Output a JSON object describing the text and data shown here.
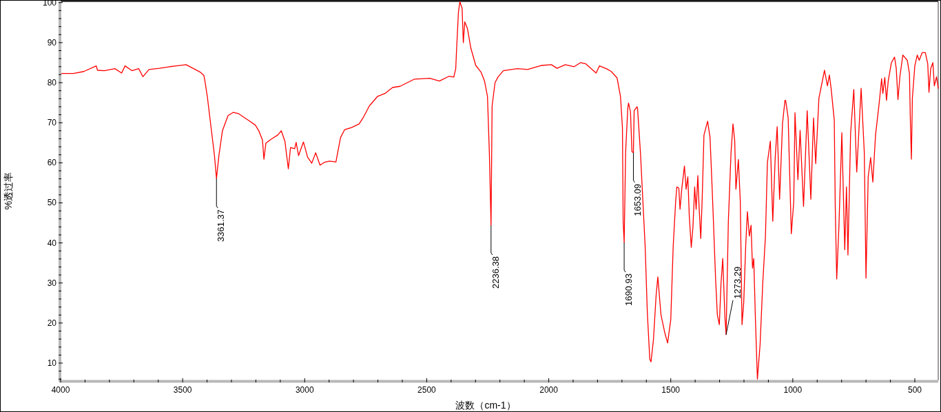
{
  "chart_data": {
    "type": "line",
    "xlabel": "波数（cm-1）",
    "ylabel": "%透过率",
    "xlim": [
      4000,
      404
    ],
    "ylim": [
      5.7,
      100.3
    ],
    "xticks": [
      4000,
      {
        "value": 3900,
        "label": null
      },
      {
        "value": 3800,
        "label": null
      },
      {
        "value": 3700,
        "label": null
      },
      {
        "value": 3600,
        "label": null
      },
      3500,
      {
        "value": 3400,
        "label": null
      },
      {
        "value": 3300,
        "label": null
      },
      {
        "value": 3200,
        "label": null
      },
      {
        "value": 3100,
        "label": null
      },
      3000,
      {
        "value": 2900,
        "label": null
      },
      {
        "value": 2800,
        "label": null
      },
      {
        "value": 2700,
        "label": null
      },
      {
        "value": 2600,
        "label": null
      },
      2500,
      {
        "value": 2400,
        "label": null
      },
      {
        "value": 2300,
        "label": null
      },
      {
        "value": 2200,
        "label": null
      },
      {
        "value": 2100,
        "label": null
      },
      2000,
      {
        "value": 1900,
        "label": null
      },
      {
        "value": 1800,
        "label": null
      },
      {
        "value": 1700,
        "label": null
      },
      {
        "value": 1600,
        "label": null
      },
      1500,
      {
        "value": 1400,
        "label": null
      },
      {
        "value": 1300,
        "label": null
      },
      {
        "value": 1200,
        "label": null
      },
      {
        "value": 1100,
        "label": null
      },
      1000,
      {
        "value": 900,
        "label": null
      },
      {
        "value": 800,
        "label": null
      },
      {
        "value": 700,
        "label": null
      },
      {
        "value": 600,
        "label": null
      },
      500
    ],
    "yticks": [
      {
        "value": 6,
        "label": null
      },
      {
        "value": 8,
        "label": null
      },
      10,
      {
        "value": 12,
        "label": null
      },
      {
        "value": 14,
        "label": null
      },
      {
        "value": 16,
        "label": null
      },
      {
        "value": 18,
        "label": null
      },
      20,
      {
        "value": 22,
        "label": null
      },
      {
        "value": 24,
        "label": null
      },
      {
        "value": 26,
        "label": null
      },
      {
        "value": 28,
        "label": null
      },
      30,
      {
        "value": 32,
        "label": null
      },
      {
        "value": 34,
        "label": null
      },
      {
        "value": 36,
        "label": null
      },
      {
        "value": 38,
        "label": null
      },
      40,
      {
        "value": 42,
        "label": null
      },
      {
        "value": 44,
        "label": null
      },
      {
        "value": 46,
        "label": null
      },
      {
        "value": 48,
        "label": null
      },
      50,
      {
        "value": 52,
        "label": null
      },
      {
        "value": 54,
        "label": null
      },
      {
        "value": 56,
        "label": null
      },
      {
        "value": 58,
        "label": null
      },
      60,
      {
        "value": 62,
        "label": null
      },
      {
        "value": 64,
        "label": null
      },
      {
        "value": 66,
        "label": null
      },
      {
        "value": 68,
        "label": null
      },
      70,
      {
        "value": 72,
        "label": null
      },
      {
        "value": 74,
        "label": null
      },
      {
        "value": 76,
        "label": null
      },
      {
        "value": 78,
        "label": null
      },
      80,
      {
        "value": 82,
        "label": null
      },
      {
        "value": 84,
        "label": null
      },
      {
        "value": 86,
        "label": null
      },
      {
        "value": 88,
        "label": null
      },
      90,
      {
        "value": 92,
        "label": null
      },
      {
        "value": 94,
        "label": null
      },
      {
        "value": 96,
        "label": null
      },
      {
        "value": 98,
        "label": null
      },
      100
    ],
    "series": [
      {
        "color": "#ff0000",
        "x": [
          3996,
          3947,
          3905,
          3854,
          3849,
          3821,
          3778,
          3750,
          3736,
          3708,
          3680,
          3663,
          3638,
          3595,
          3553,
          3486,
          3455,
          3427,
          3413,
          3410,
          3399,
          3382,
          3370,
          3361.37,
          3351,
          3337,
          3314,
          3292,
          3272,
          3230,
          3202,
          3188,
          3173,
          3167,
          3159,
          3137,
          3109,
          3096,
          3081,
          3067,
          3058,
          3041,
          3035,
          3025,
          3005,
          2988,
          2971,
          2955,
          2937,
          2920,
          2898,
          2872,
          2853,
          2836,
          2808,
          2777,
          2761,
          2735,
          2701,
          2671,
          2640,
          2609,
          2550,
          2487,
          2448,
          2409,
          2389,
          2381,
          2378,
          2370,
          2364,
          2355,
          2350,
          2344,
          2333,
          2319,
          2299,
          2277,
          2263,
          2251,
          2243,
          2236.38,
          2232,
          2220,
          2208,
          2186,
          2129,
          2087,
          2031,
          1989,
          1966,
          1932,
          1896,
          1870,
          1848,
          1806,
          1792,
          1764,
          1744,
          1720,
          1706,
          1698,
          1695,
          1690.93,
          1685,
          1676,
          1673,
          1665,
          1659,
          1653.09,
          1650,
          1638,
          1636,
          1624,
          1605,
          1596,
          1586,
          1581,
          1571,
          1560,
          1553,
          1540,
          1525,
          1513,
          1500,
          1490,
          1480,
          1475,
          1467,
          1462,
          1455,
          1444,
          1437,
          1430,
          1424,
          1416,
          1409,
          1402,
          1396,
          1389,
          1384,
          1377,
          1371,
          1364,
          1349,
          1339,
          1329,
          1316,
          1309,
          1301,
          1294,
          1287,
          1278,
          1273.29,
          1264,
          1253,
          1245,
          1238,
          1233,
          1223,
          1215,
          1208,
          1201,
          1193,
          1186,
          1178,
          1171,
          1165,
          1160,
          1153,
          1145,
          1134,
          1123,
          1112,
          1104,
          1092,
          1082,
          1072,
          1064,
          1054,
          1042,
          1032,
          1029,
          1019,
          1006,
          996,
          991,
          979,
          970,
          956,
          941,
          926,
          915,
          906,
          893,
          870,
          858,
          850,
          843,
          830,
          826,
          820,
          811,
          799,
          787,
          780,
          774,
          763,
          750,
          738,
          720,
          707,
          700,
          691,
          681,
          672,
          661,
          646,
          636,
          631,
          623,
          616,
          609,
          596,
          583,
          576,
          569,
          561,
          549,
          531,
          522,
          518,
          514,
          510,
          500,
          490,
          482,
          470,
          457,
          447,
          442,
          435,
          426,
          420,
          411,
          404
        ],
        "values": [
          82.3,
          82.3,
          82.8,
          84.2,
          83.1,
          83.0,
          83.5,
          82.4,
          84.2,
          83.0,
          83.5,
          81.5,
          83.3,
          83.6,
          84.0,
          84.5,
          83.5,
          82.6,
          81.8,
          80.9,
          76.6,
          68.0,
          62.0,
          56.1,
          62.0,
          68.0,
          71.8,
          72.6,
          72.3,
          70.6,
          69.4,
          68.0,
          65.7,
          60.9,
          64.9,
          65.9,
          67.0,
          68.0,
          65.4,
          58.5,
          63.8,
          63.5,
          65.1,
          61.8,
          65.2,
          61.4,
          59.9,
          62.5,
          59.4,
          60.1,
          60.4,
          60.2,
          66.3,
          68.3,
          68.8,
          69.7,
          71.2,
          74.2,
          76.6,
          77.3,
          78.8,
          79.1,
          80.9,
          81.1,
          80.4,
          81.6,
          81.4,
          83.5,
          87.8,
          97.6,
          100.2,
          98.6,
          90.0,
          95.2,
          93.5,
          88.6,
          84.3,
          82.6,
          80.4,
          76.6,
          62.0,
          44.4,
          74.2,
          80.0,
          81.4,
          83.0,
          83.5,
          83.3,
          84.3,
          84.5,
          83.6,
          84.5,
          84.0,
          85.0,
          84.7,
          82.4,
          84.2,
          83.5,
          82.8,
          81.2,
          76.6,
          68.8,
          45.4,
          40.1,
          62.6,
          73.7,
          74.9,
          72.7,
          62.8,
          62.5,
          73.0,
          74.0,
          73.5,
          62.3,
          39.2,
          22.6,
          11.0,
          10.3,
          15.8,
          26.9,
          31.5,
          22.0,
          17.7,
          15.0,
          20.8,
          39.2,
          50.3,
          54.0,
          53.7,
          48.4,
          53.4,
          59.2,
          53.4,
          56.5,
          46.6,
          38.9,
          44.1,
          54.0,
          48.4,
          56.8,
          49.1,
          41.1,
          51.5,
          66.9,
          70.4,
          66.3,
          51.5,
          30.6,
          22.0,
          19.6,
          30.0,
          36.1,
          21.4,
          17.1,
          45.4,
          62.6,
          69.7,
          65.6,
          53.4,
          60.8,
          50.3,
          19.6,
          25.1,
          39.2,
          47.8,
          41.7,
          44.4,
          33.7,
          36.1,
          20.8,
          6.0,
          14.6,
          30.0,
          41.7,
          60.1,
          65.4,
          45.4,
          61.3,
          69.0,
          50.9,
          69.9,
          75.6,
          75.5,
          71.2,
          42.3,
          50.3,
          72.5,
          55.8,
          68.1,
          49.1,
          73.0,
          50.9,
          71.2,
          59.8,
          76.1,
          83.1,
          79.2,
          81.9,
          78.6,
          70.6,
          49.1,
          31.0,
          44.1,
          67.5,
          38.3,
          54.0,
          37.0,
          67.5,
          78.3,
          57.7,
          78.6,
          62.6,
          31.2,
          56.5,
          61.3,
          55.2,
          66.9,
          74.9,
          81.0,
          77.3,
          81.3,
          75.6,
          80.4,
          85.0,
          86.4,
          83.5,
          75.8,
          81.6,
          86.9,
          85.6,
          82.3,
          69.9,
          60.9,
          76.1,
          84.2,
          86.9,
          85.6,
          87.5,
          87.5,
          84.7,
          77.6,
          83.5,
          85.0,
          79.2,
          81.5,
          78.6
        ]
      }
    ],
    "annotations": [
      {
        "text": "3361.37",
        "x": 3361.37,
        "y": 56.1
      },
      {
        "text": "2236.38",
        "x": 2236.38,
        "y": 44.4
      },
      {
        "text": "1690.93",
        "x": 1690.93,
        "y": 40.1
      },
      {
        "text": "1653.09",
        "x": 1653.09,
        "y": 62.5
      },
      {
        "text": "1273.29",
        "x": 1273.29,
        "y": 17.1
      }
    ]
  }
}
